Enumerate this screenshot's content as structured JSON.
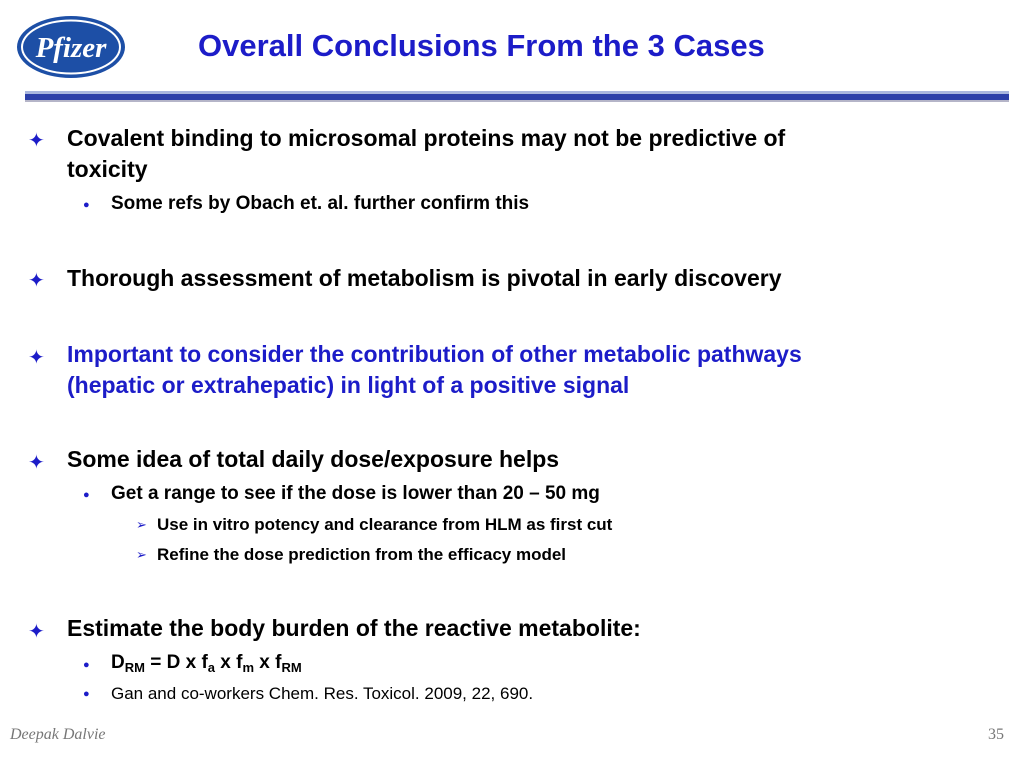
{
  "header": {
    "logo_text": "Pfizer",
    "title": "Overall Conclusions From the 3 Cases"
  },
  "colors": {
    "title": "#1c1cc8",
    "highlight": "#1c1cc8",
    "logo": "#1d4fa6",
    "rule": "#2c3fa8"
  },
  "bullets": {
    "b1": {
      "line1": "Covalent binding to microsomal proteins may not be predictive of",
      "line2": "toxicity",
      "sub1": "Some refs by Obach et. al. further confirm this"
    },
    "b2": {
      "line1": "Thorough assessment of metabolism is pivotal in early discovery"
    },
    "b3": {
      "line1": "Important to consider the contribution of other metabolic pathways",
      "line2": "(hepatic or extrahepatic) in light of a positive signal"
    },
    "b4": {
      "line1": "Some idea of total daily dose/exposure helps",
      "sub1": "Get a range to see if the dose is lower than 20 – 50 mg",
      "subsub1": "Use in vitro potency and clearance from HLM as first cut",
      "subsub2": "Refine the dose prediction from the efficacy model"
    },
    "b5": {
      "line1": "Estimate the body burden of the reactive metabolite:",
      "formula": {
        "d": "D",
        "d_sub": "RM",
        "eq": " = D x f",
        "fa_sub": "a",
        "x1": " x f",
        "fm_sub": "m",
        "x2": " x f",
        "frm_sub": "RM"
      },
      "ref": "Gan and co-workers Chem. Res. Toxicol. 2009, 22, 690."
    }
  },
  "markers": {
    "level1": "✦",
    "level2": "●",
    "level3": "➢"
  },
  "footer": {
    "author": "Deepak Dalvie",
    "page": "35"
  }
}
